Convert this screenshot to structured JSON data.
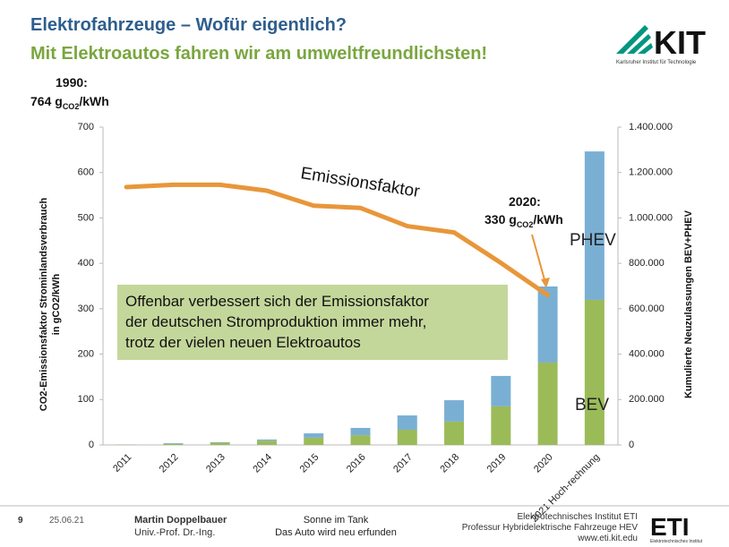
{
  "slide": {
    "title": "Elektrofahrzeuge – Wofür eigentlich?",
    "subtitle": "Mit Elektroautos fahren wir am umweltfreundlichsten!",
    "logo": {
      "word": "KIT",
      "caption": "Karlsruher Institut für Technologie"
    }
  },
  "chart_data": {
    "type": "bar-line",
    "categories": [
      "2011",
      "2012",
      "2013",
      "2014",
      "2015",
      "2016",
      "2017",
      "2018",
      "2019",
      "2020",
      "2021 Hoch-rechnung"
    ],
    "series": [
      {
        "name": "BEV",
        "color": "#9bbb59",
        "axis": "y2",
        "values": [
          1500,
          5000,
          10000,
          19000,
          32000,
          43000,
          67000,
          103000,
          170000,
          363000,
          639000
        ]
      },
      {
        "name": "PHEV",
        "color": "#7aafd4",
        "axis": "y2",
        "values": [
          500,
          3000,
          2000,
          5000,
          19000,
          32000,
          63000,
          94000,
          134000,
          335000,
          654000
        ]
      },
      {
        "name": "Emissionsfaktor",
        "color": "#e8963a",
        "axis": "y",
        "values": [
          568,
          573,
          573,
          560,
          527,
          522,
          482,
          468,
          401,
          330,
          null
        ]
      }
    ],
    "ylabel": [
      "CO2-Emissionsfaktor Strominlandsverbrauch",
      "in gCO2/kWh"
    ],
    "y2label": "Kumulierte Neuzulassungen BEV+PHEV",
    "ylim": [
      0,
      700
    ],
    "yticks": [
      0,
      100,
      200,
      300,
      400,
      500,
      600,
      700
    ],
    "y2lim": [
      0,
      1400000
    ],
    "y2ticks": [
      {
        "value": 0,
        "label": "0"
      },
      {
        "value": 200000,
        "label": "200.000"
      },
      {
        "value": 400000,
        "label": "400.000"
      },
      {
        "value": 600000,
        "label": "600.000"
      },
      {
        "value": 800000,
        "label": "800.000"
      },
      {
        "value": 1000000,
        "label": "1.000.000"
      },
      {
        "value": 1200000,
        "label": "1.200.000"
      },
      {
        "value": 1400000,
        "label": "1.400.000"
      }
    ],
    "annotations": [
      {
        "head": "1990:",
        "prefix": "764 g",
        "sub": "CO2",
        "suffix": "/kWh"
      },
      {
        "head": "2020:",
        "prefix": "330 g",
        "sub": "CO2",
        "suffix": "/kWh"
      }
    ],
    "box": [
      "Offenbar verbessert sich der Emissionsfaktor",
      "der deutschen Stromproduktion immer mehr,",
      "trotz der vielen neuen Elektroautos"
    ]
  },
  "footer": {
    "page": "9",
    "date": "25.06.21",
    "author": "Martin Doppelbauer",
    "author_title": "Univ.-Prof. Dr.-Ing.",
    "talk": "Sonne im Tank",
    "talk_sub": "Das Auto wird neu erfunden",
    "institute": "Elektrotechnisches Institut ETI",
    "chair": "Professur Hybridelektrische Fahrzeuge HEV",
    "web": "www.eti.kit.edu",
    "eti_logo": "ETI",
    "eti_caption": "Elektrotechnisches Institut"
  }
}
